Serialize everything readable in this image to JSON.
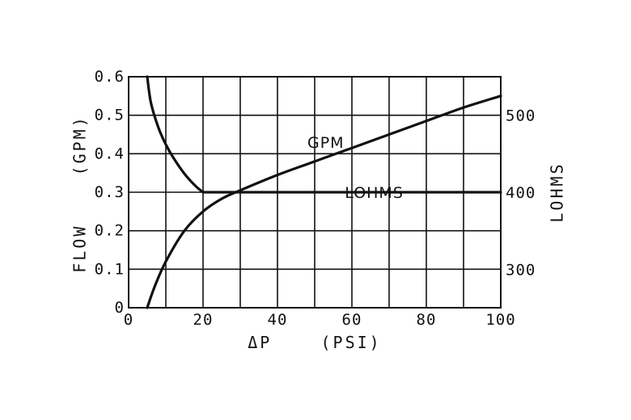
{
  "chart_data": {
    "type": "line",
    "xlabel": "ΔP    (PSI)",
    "ylabel_left": "FLOW    (GPM)",
    "ylabel_right": "LOHMS",
    "xlim": [
      0,
      100
    ],
    "ylim": [
      0,
      0.6
    ],
    "right_ylim": [
      250,
      550
    ],
    "x_ticks": [
      0,
      20,
      40,
      60,
      80,
      100
    ],
    "x_tick_labels": [
      "0",
      "20",
      "40",
      "60",
      "80",
      "100"
    ],
    "y_ticks": [
      0,
      0.1,
      0.2,
      0.3,
      0.4,
      0.5,
      0.6
    ],
    "y_tick_labels": [
      "0",
      "0.1",
      "0.2",
      "0.3",
      "0.4",
      "0.5",
      "0.6"
    ],
    "right_y_ticks": [
      300,
      400,
      500
    ],
    "right_y_tick_labels": [
      "300",
      "400",
      "500"
    ],
    "grid": true,
    "grid_x_step": 10,
    "grid_y_step": 0.1,
    "series": [
      {
        "name": "GPM",
        "axis": "left",
        "x": [
          5,
          7,
          10,
          15,
          20,
          25,
          30,
          40,
          50,
          60,
          70,
          80,
          90,
          100
        ],
        "y": [
          0,
          0.055,
          0.12,
          0.2,
          0.25,
          0.283,
          0.305,
          0.345,
          0.38,
          0.415,
          0.45,
          0.485,
          0.52,
          0.55
        ]
      },
      {
        "name": "LOHMS",
        "axis": "right",
        "x": [
          5,
          6,
          8,
          10,
          12,
          15,
          18,
          20,
          30,
          40,
          60,
          80,
          100
        ],
        "y": [
          550,
          516,
          484,
          462,
          445,
          424,
          408,
          400,
          400,
          400,
          400,
          400,
          400
        ]
      }
    ],
    "annotations": [
      {
        "text": "GPM",
        "x": 53,
        "y": 0.415
      },
      {
        "text": "LOHMS",
        "x": 66,
        "y": 0.285
      }
    ]
  }
}
